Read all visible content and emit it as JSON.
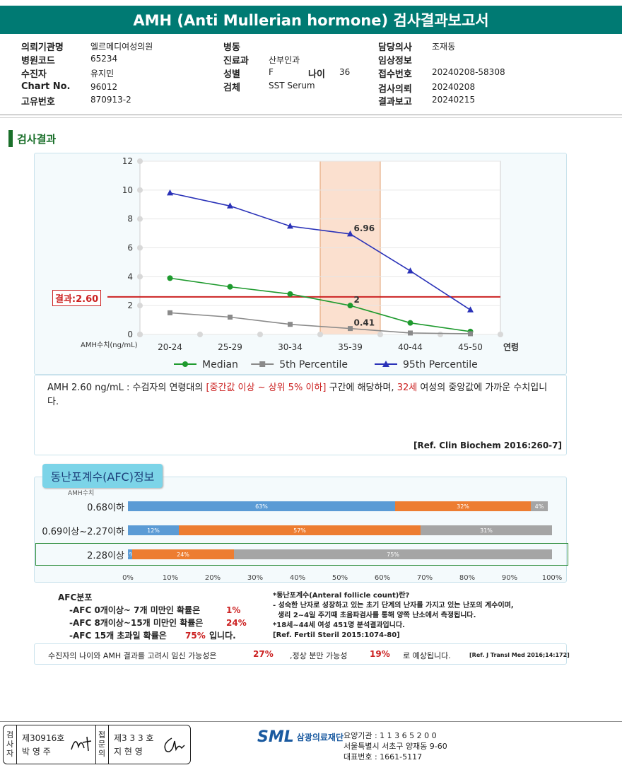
{
  "report_title": "AMH (Anti Mullerian hormone) 검사결과보고서",
  "info": {
    "col1": [
      {
        "label": "의뢰기관명",
        "value": "엘르메디여성의원"
      },
      {
        "label": "병원코드",
        "value": "65234"
      },
      {
        "label": "수진자",
        "value": "유지민"
      },
      {
        "label": "Chart No.",
        "value": "96012"
      },
      {
        "label": "고유번호",
        "value": "870913-2"
      }
    ],
    "col2": [
      {
        "label": "병동",
        "value": ""
      },
      {
        "label": "진료과",
        "value": "산부인과"
      },
      {
        "label": "성별",
        "value": "F"
      },
      {
        "label": "검체",
        "value": "SST Serum"
      }
    ],
    "age_label": "나이",
    "age_value": "36",
    "col3": [
      {
        "label": "담당의사",
        "value": "조재동"
      },
      {
        "label": "임상정보",
        "value": ""
      },
      {
        "label": "접수번호",
        "value": "20240208-58308"
      },
      {
        "label": "검사의뢰",
        "value": "20240208"
      },
      {
        "label": "결과보고",
        "value": "20240215"
      }
    ]
  },
  "section_title": "검사결과",
  "chart_data": {
    "type": "line",
    "categories": [
      "20-24",
      "25-29",
      "30-34",
      "35-39",
      "40-44",
      "45-50"
    ],
    "x_axis_suffix": "연령",
    "ylabel": "AMH수치(ng/mL)",
    "ylim": [
      0,
      12
    ],
    "yticks": [
      0,
      2,
      4,
      6,
      8,
      10,
      12
    ],
    "grid": true,
    "highlight_category": "35-39",
    "highlight_color": "#fbe0cf",
    "result_line": {
      "label": "결과:2.60",
      "value": 2.6,
      "color": "#cc2222"
    },
    "series": [
      {
        "name": "Median",
        "color": "#1e9a2e",
        "marker": "circle",
        "values": [
          3.9,
          3.3,
          2.8,
          2.0,
          0.8,
          0.2
        ]
      },
      {
        "name": "5th Percentile",
        "color": "#8a8a8a",
        "marker": "square",
        "values": [
          1.5,
          1.2,
          0.7,
          0.41,
          0.1,
          0.05
        ]
      },
      {
        "name": "95th Percentile",
        "color": "#2a32b8",
        "marker": "triangle",
        "values": [
          9.8,
          8.9,
          7.5,
          6.96,
          4.4,
          1.7
        ]
      }
    ],
    "data_labels": [
      {
        "series": "95th Percentile",
        "category": "35-39",
        "text": "6.96"
      },
      {
        "series": "Median",
        "category": "35-39",
        "text": "2"
      },
      {
        "series": "5th Percentile",
        "category": "35-39",
        "text": "0.41"
      }
    ],
    "legend_position": "bottom"
  },
  "description": {
    "p1": "AMH  2.60 ng/mL : 수검자의 연령대의 ",
    "p2": "[중간값 이상 ~ 상위 5% 이하]",
    "p3": "  구간에 해당하며, ",
    "p4": "32세",
    "p5": " 여성의 중앙값에 가까운 수치입니다.",
    "ref": "[Ref. Clin Biochem 2016:260-7]"
  },
  "afc": {
    "title": "동난포계수(AFC)정보",
    "sub": "AMH수치",
    "axis": [
      "0%",
      "10%",
      "20%",
      "30%",
      "40%",
      "50%",
      "60%",
      "70%",
      "80%",
      "90%",
      "100%"
    ],
    "rows": [
      {
        "label": "0.68이하",
        "segments": [
          {
            "value": 63,
            "text": "63%",
            "color": "#5b9bd5"
          },
          {
            "value": 32,
            "text": "32%",
            "color": "#ed7d31"
          },
          {
            "value": 4,
            "text": "4%",
            "color": "#a5a5a5"
          }
        ]
      },
      {
        "label": "0.69이상~2.27이하",
        "segments": [
          {
            "value": 12,
            "text": "12%",
            "color": "#5b9bd5"
          },
          {
            "value": 57,
            "text": "57%",
            "color": "#ed7d31"
          },
          {
            "value": 31,
            "text": "31%",
            "color": "#a5a5a5"
          }
        ]
      },
      {
        "label": "2.28이상",
        "segments": [
          {
            "value": 1,
            "text": "1%",
            "color": "#5b9bd5"
          },
          {
            "value": 24,
            "text": "24%",
            "color": "#ed7d31"
          },
          {
            "value": 75,
            "text": "75%",
            "color": "#a5a5a5"
          }
        ]
      }
    ],
    "summary_title": "AFC분포",
    "summary": [
      {
        "text": "-AFC 0개이상~ 7개 미만인 확률은",
        "pct": "1%",
        "tail": ""
      },
      {
        "text": "-AFC 8개이상~15개 미만인 확률은",
        "pct": "24%",
        "tail": ""
      },
      {
        "text": "-AFC 15개 초과일 확률은",
        "pct": "75%",
        "tail": "입니다."
      }
    ],
    "note": [
      "*동난포계수(Anteral follicle count)란?",
      "- 성숙한 난자로 성장하고 있는 초기 단계의 난자를 가지고 있는 난포의 계수이며,",
      "  생리 2~4일 주기때 초음파검사를 통해 양쪽 난소에서 측정됩니다.",
      "*18세~44세 여성 451명 분석결과입니다.",
      "[Ref. Fertil Steril 2015:1074-80]"
    ]
  },
  "pregnancy": {
    "t1": "수진자의  나이와 AMH 결과를 고려시 임신 가능성은",
    "v1": "27%",
    "t2": ",정상 분만 가능성",
    "v2": "19%",
    "t3": "로 예상됩니다.",
    "ref": "[Ref. J Transl Med 2016;14:172]"
  },
  "footer": {
    "sig1_label": [
      "검",
      "사",
      "자"
    ],
    "sig1_no": "제30916호",
    "sig1_name": "박 영 주",
    "sig2_label": [
      "접",
      "문",
      "의"
    ],
    "sig2_no": "제3 3 3 호",
    "sig2_name": "지 현 영",
    "logo_mark": "SML",
    "logo_name": "삼광의료재단",
    "org_lines": [
      "요양기관 : 1 1 3 6 5 2 0 0",
      "서울특별시 서초구 양재동 9-60",
      "대표번호 : 1661-5117"
    ]
  }
}
